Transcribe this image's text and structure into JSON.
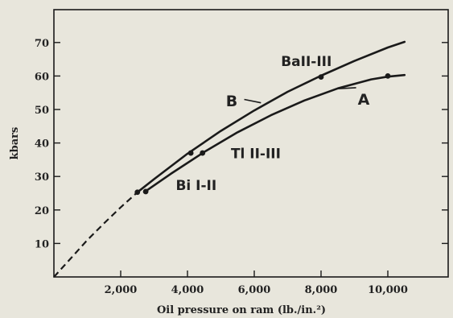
{
  "chart_data": {
    "type": "line",
    "xlabel": "Oil pressure on ram (lb./in.²)",
    "ylabel": "kbars",
    "xlim": [
      0,
      11500
    ],
    "ylim": [
      0,
      78
    ],
    "x_ticks": [
      2000,
      4000,
      6000,
      8000,
      10000
    ],
    "x_tick_labels": [
      "2,000",
      "4,000",
      "6,000",
      "8,000",
      "10,000"
    ],
    "y_ticks": [
      10,
      20,
      30,
      40,
      50,
      60,
      70
    ],
    "y_tick_labels": [
      "10",
      "20",
      "30",
      "40",
      "50",
      "60",
      "70"
    ],
    "series": [
      {
        "name": "B",
        "color": "#1a1a1a",
        "dashed_segment": {
          "x": [
            0,
            500,
            1000,
            1500,
            2000,
            2500
          ],
          "y": [
            0,
            5.5,
            11,
            16,
            20.8,
            25.3
          ]
        },
        "x": [
          2500,
          3000,
          4000,
          5000,
          6000,
          7000,
          8000,
          9000,
          10000,
          10500
        ],
        "y": [
          25.3,
          29.2,
          36.8,
          43.6,
          49.7,
          55.3,
          60.1,
          64.5,
          68.5,
          70.2
        ],
        "markers": [
          {
            "x": 2500,
            "y": 25.3
          },
          {
            "x": 4100,
            "y": 37
          },
          {
            "x": 8000,
            "y": 59.7
          }
        ]
      },
      {
        "name": "A",
        "color": "#1a1a1a",
        "x": [
          2700,
          3500,
          4500,
          5500,
          6500,
          7500,
          8500,
          9500,
          10000,
          10500
        ],
        "y": [
          25.3,
          30.8,
          37.3,
          43.2,
          48.3,
          52.7,
          56.3,
          59.0,
          59.8,
          60.3
        ],
        "markers": [
          {
            "x": 2750,
            "y": 25.5
          },
          {
            "x": 4450,
            "y": 37
          },
          {
            "x": 10000,
            "y": 60
          }
        ]
      }
    ],
    "annotations": [
      {
        "text": "BaII-III",
        "x": 6800,
        "y": 63
      },
      {
        "text": "B",
        "x": 5150,
        "y": 51
      },
      {
        "text": "A",
        "x": 9100,
        "y": 51.5
      },
      {
        "text": "Tl II-III",
        "x": 5300,
        "y": 35.5
      },
      {
        "text": "Bi I-II",
        "x": 3650,
        "y": 26
      }
    ],
    "grid": false,
    "legend": "none"
  }
}
